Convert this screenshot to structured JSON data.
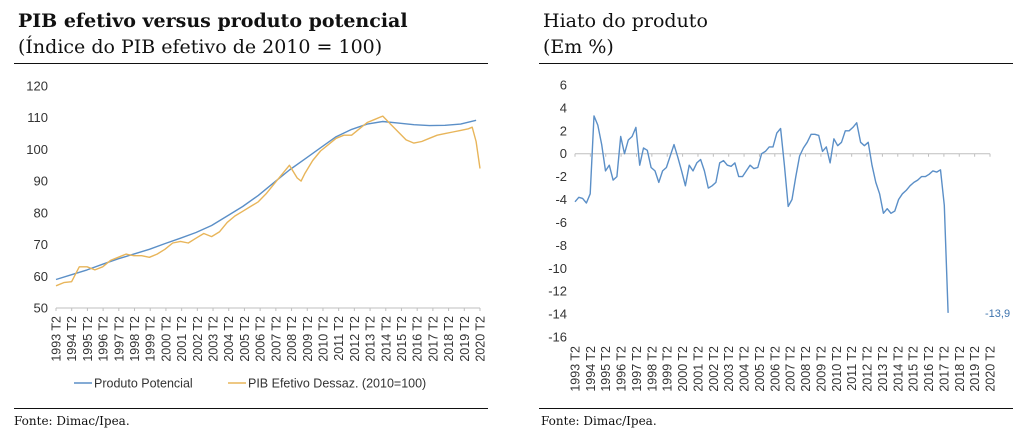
{
  "left": {
    "title": "PIB efetivo versus produto potencial",
    "subtitle": "(Índice do PIB efetivo de 2010 = 100)",
    "source": "Fonte: Dimac/Ipea."
  },
  "right": {
    "title": "Hiato do produto",
    "subtitle": "(Em %)",
    "source": "Fonte: Dimac/Ipea."
  },
  "chart_data": [
    {
      "type": "line",
      "title": "PIB efetivo versus produto potencial",
      "subtitle": "(Índice do PIB efetivo de 2010 = 100)",
      "ylim": [
        50,
        120
      ],
      "yticks": [
        "50",
        "60",
        "70",
        "80",
        "90",
        "100",
        "110",
        "120"
      ],
      "x_labels": [
        "1993 T2",
        "1994 T2",
        "1995 T2",
        "1996 T2",
        "1997 T2",
        "1998 T2",
        "1999 T2",
        "2000 T2",
        "2001 T2",
        "2002 T2",
        "2003 T2",
        "2004 T2",
        "2005 T2",
        "2006 T2",
        "2007 T2",
        "2008 T2",
        "2009 T2",
        "2010 T2",
        "2011 T2",
        "2012 T2",
        "2013 T2",
        "2014 T2",
        "2015 T2",
        "2016 T2",
        "2017 T2",
        "2018 T2",
        "2019 T2",
        "2020 T2"
      ],
      "x_range": [
        1993,
        2020.25
      ],
      "legend_position": "bottom",
      "colors": {
        "potencial": "#5b8fc7",
        "efetivo": "#e8b55a"
      },
      "series": [
        {
          "name": "Produto Potencial",
          "points": [
            [
              1993,
              59
            ],
            [
              1994,
              60.5
            ],
            [
              1995,
              62
            ],
            [
              1996,
              63.8
            ],
            [
              1997,
              65.5
            ],
            [
              1998,
              67
            ],
            [
              1999,
              68.5
            ],
            [
              2000,
              70.3
            ],
            [
              2001,
              72
            ],
            [
              2002,
              73.8
            ],
            [
              2003,
              76
            ],
            [
              2004,
              79
            ],
            [
              2005,
              82
            ],
            [
              2006,
              85.5
            ],
            [
              2007,
              89.5
            ],
            [
              2008,
              93.5
            ],
            [
              2009,
              97
            ],
            [
              2010,
              100.5
            ],
            [
              2011,
              104
            ],
            [
              2012,
              106.3
            ],
            [
              2013,
              108
            ],
            [
              2014,
              108.8
            ],
            [
              2015,
              108.3
            ],
            [
              2016,
              107.8
            ],
            [
              2017,
              107.5
            ],
            [
              2018,
              107.6
            ],
            [
              2019,
              108
            ],
            [
              2020,
              109.2
            ]
          ]
        },
        {
          "name": "PIB Efetivo Dessaz. (2010=100)",
          "points": [
            [
              1993,
              57
            ],
            [
              1993.5,
              58
            ],
            [
              1994,
              58.3
            ],
            [
              1994.5,
              63
            ],
            [
              1995,
              63
            ],
            [
              1995.5,
              62
            ],
            [
              1996,
              63
            ],
            [
              1996.5,
              65
            ],
            [
              1997,
              66
            ],
            [
              1997.5,
              67
            ],
            [
              1998,
              66.5
            ],
            [
              1998.5,
              66.5
            ],
            [
              1999,
              66
            ],
            [
              1999.5,
              67
            ],
            [
              2000,
              68.5
            ],
            [
              2000.5,
              70.5
            ],
            [
              2001,
              71
            ],
            [
              2001.5,
              70.5
            ],
            [
              2002,
              72
            ],
            [
              2002.5,
              73.5
            ],
            [
              2003,
              72.5
            ],
            [
              2003.5,
              74
            ],
            [
              2004,
              77
            ],
            [
              2004.5,
              79
            ],
            [
              2005,
              80.5
            ],
            [
              2005.5,
              82
            ],
            [
              2006,
              83.5
            ],
            [
              2006.5,
              86
            ],
            [
              2007,
              89
            ],
            [
              2007.5,
              92
            ],
            [
              2008,
              95
            ],
            [
              2008.5,
              91
            ],
            [
              2008.75,
              90
            ],
            [
              2009,
              92.5
            ],
            [
              2009.5,
              96.5
            ],
            [
              2010,
              99.5
            ],
            [
              2010.5,
              101.5
            ],
            [
              2011,
              103.5
            ],
            [
              2011.5,
              104.5
            ],
            [
              2012,
              104.5
            ],
            [
              2012.5,
              106.5
            ],
            [
              2013,
              108.5
            ],
            [
              2013.5,
              109.5
            ],
            [
              2014,
              110.5
            ],
            [
              2014.5,
              108
            ],
            [
              2015,
              105.5
            ],
            [
              2015.5,
              103
            ],
            [
              2016,
              102
            ],
            [
              2016.5,
              102.5
            ],
            [
              2017,
              103.5
            ],
            [
              2017.5,
              104.5
            ],
            [
              2018,
              105
            ],
            [
              2018.5,
              105.5
            ],
            [
              2019,
              106
            ],
            [
              2019.5,
              106.5
            ],
            [
              2019.75,
              107
            ],
            [
              2020,
              102.5
            ],
            [
              2020.25,
              94
            ]
          ]
        }
      ]
    },
    {
      "type": "line",
      "title": "Hiato do produto",
      "subtitle": "(Em %)",
      "ylim": [
        -16,
        6
      ],
      "yticks": [
        "-16",
        "-14",
        "-12",
        "-10",
        "-8",
        "-6",
        "-4",
        "-2",
        "0",
        "2",
        "4",
        "6"
      ],
      "x_labels": [
        "1993 T2",
        "1994 T2",
        "1995 T2",
        "1996 T2",
        "1997 T2",
        "1998 T2",
        "1999 T2",
        "2000 T2",
        "2001 T2",
        "2002 T2",
        "2003 T2",
        "2004 T2",
        "2005 T2",
        "2006 T2",
        "2007 T2",
        "2008 T2",
        "2009 T2",
        "2010 T2",
        "2011 T2",
        "2012 T2",
        "2013 T2",
        "2014 T2",
        "2015 T2",
        "2016 T2",
        "2017 T2",
        "2018 T2",
        "2019 T2",
        "2020 T2"
      ],
      "x_range": [
        1993,
        2020.25
      ],
      "colors": {
        "line": "#5b8fc7",
        "annotation": "#3d73ad"
      },
      "annotation": {
        "text": "-13,9",
        "x": 2020.25,
        "y": -13.9
      },
      "series": [
        {
          "points": [
            [
              1993,
              -4.2
            ],
            [
              1993.25,
              -3.8
            ],
            [
              1993.5,
              -3.9
            ],
            [
              1993.75,
              -4.3
            ],
            [
              1994,
              -3.5
            ],
            [
              1994.25,
              3.3
            ],
            [
              1994.5,
              2.5
            ],
            [
              1994.75,
              0.8
            ],
            [
              1995,
              -1.5
            ],
            [
              1995.25,
              -1
            ],
            [
              1995.5,
              -2.3
            ],
            [
              1995.75,
              -2
            ],
            [
              1996,
              1.5
            ],
            [
              1996.25,
              0
            ],
            [
              1996.5,
              1.2
            ],
            [
              1996.75,
              1.5
            ],
            [
              1997,
              2.3
            ],
            [
              1997.25,
              -1
            ],
            [
              1997.5,
              0.5
            ],
            [
              1997.75,
              0.3
            ],
            [
              1998,
              -1.2
            ],
            [
              1998.25,
              -1.5
            ],
            [
              1998.5,
              -2.5
            ],
            [
              1998.75,
              -1.5
            ],
            [
              1999,
              -1.2
            ],
            [
              1999.25,
              -0.2
            ],
            [
              1999.5,
              0.8
            ],
            [
              1999.75,
              -0.3
            ],
            [
              2000,
              -1.5
            ],
            [
              2000.25,
              -2.8
            ],
            [
              2000.5,
              -1
            ],
            [
              2000.75,
              -1.5
            ],
            [
              2001,
              -0.8
            ],
            [
              2001.25,
              -0.5
            ],
            [
              2001.5,
              -1.5
            ],
            [
              2001.75,
              -3
            ],
            [
              2002,
              -2.8
            ],
            [
              2002.25,
              -2.5
            ],
            [
              2002.5,
              -0.8
            ],
            [
              2002.75,
              -0.6
            ],
            [
              2003,
              -1
            ],
            [
              2003.25,
              -1.1
            ],
            [
              2003.5,
              -0.8
            ],
            [
              2003.75,
              -2
            ],
            [
              2004,
              -2
            ],
            [
              2004.25,
              -1.5
            ],
            [
              2004.5,
              -1
            ],
            [
              2004.75,
              -1.3
            ],
            [
              2005,
              -1.2
            ],
            [
              2005.25,
              0
            ],
            [
              2005.5,
              0.2
            ],
            [
              2005.75,
              0.6
            ],
            [
              2006,
              0.6
            ],
            [
              2006.25,
              1.8
            ],
            [
              2006.5,
              2.2
            ],
            [
              2006.75,
              -1
            ],
            [
              2007,
              -4.6
            ],
            [
              2007.25,
              -4
            ],
            [
              2007.5,
              -2
            ],
            [
              2007.75,
              -0.2
            ],
            [
              2008,
              0.5
            ],
            [
              2008.25,
              1
            ],
            [
              2008.5,
              1.7
            ],
            [
              2008.75,
              1.7
            ],
            [
              2009,
              1.6
            ],
            [
              2009.25,
              0.2
            ],
            [
              2009.5,
              0.6
            ],
            [
              2009.75,
              -0.8
            ],
            [
              2010,
              1.3
            ],
            [
              2010.25,
              0.7
            ],
            [
              2010.5,
              1
            ],
            [
              2010.75,
              2
            ],
            [
              2011,
              2
            ],
            [
              2011.25,
              2.3
            ],
            [
              2011.5,
              2.7
            ],
            [
              2011.75,
              1
            ],
            [
              2012,
              0.7
            ],
            [
              2012.25,
              1
            ],
            [
              2012.5,
              -1
            ],
            [
              2012.75,
              -2.5
            ],
            [
              2013,
              -3.5
            ],
            [
              2013.25,
              -5.2
            ],
            [
              2013.5,
              -4.8
            ],
            [
              2013.75,
              -5.2
            ],
            [
              2014,
              -5
            ],
            [
              2014.25,
              -4
            ],
            [
              2014.5,
              -3.5
            ],
            [
              2014.75,
              -3.2
            ],
            [
              2015,
              -2.8
            ],
            [
              2015.25,
              -2.5
            ],
            [
              2015.5,
              -2.3
            ],
            [
              2015.75,
              -2
            ],
            [
              2016,
              -2
            ],
            [
              2016.25,
              -1.8
            ],
            [
              2016.5,
              -1.5
            ],
            [
              2016.75,
              -1.6
            ],
            [
              2017,
              -1.4
            ],
            [
              2017.25,
              -4.5
            ],
            [
              2017.5,
              -13.9
            ]
          ]
        }
      ]
    }
  ]
}
